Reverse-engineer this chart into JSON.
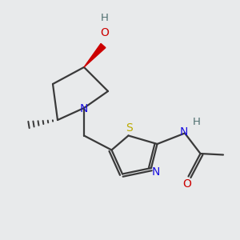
{
  "background_color": "#e8eaeb",
  "bond_color": "#3a3a3a",
  "N_color": "#1a10e0",
  "O_color": "#cc0000",
  "S_color": "#bbaa00",
  "H_color": "#507070",
  "lw": 1.6,
  "xlim": [
    0,
    10
  ],
  "ylim": [
    0,
    10
  ]
}
